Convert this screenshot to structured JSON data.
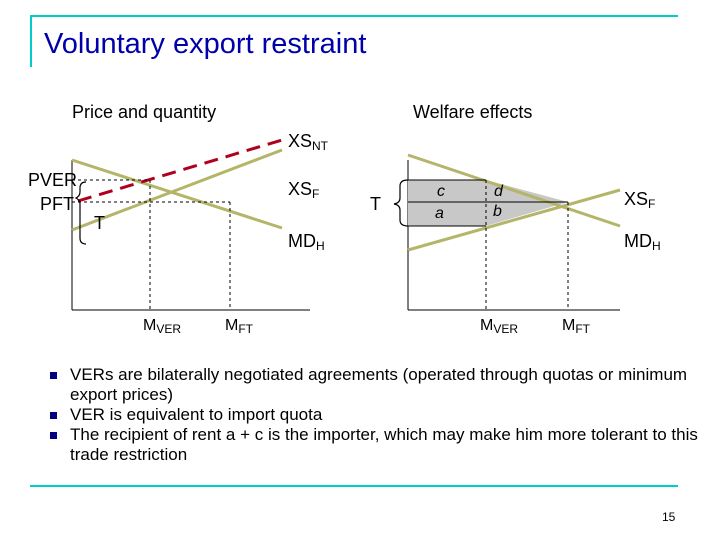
{
  "slide": {
    "title": "Voluntary export restraint",
    "page_number": "15"
  },
  "left_panel": {
    "heading": "Price and quantity",
    "curve_xs_nt": {
      "base": "XS",
      "sub": "NT"
    },
    "curve_xs_f": {
      "base": "XS",
      "sub": "F"
    },
    "curve_md_h": {
      "base": "MD",
      "sub": "H"
    },
    "price_ver": "PVER",
    "price_ft": "PFT",
    "tariff_equiv": "T",
    "qty_ver": {
      "base": "M",
      "sub": "VER"
    },
    "qty_ft": {
      "base": "M",
      "sub": "FT"
    }
  },
  "right_panel": {
    "heading": "Welfare effects",
    "tariff_equiv": "T",
    "area_c": "c",
    "area_a": "a",
    "area_d": "d",
    "area_b": "b",
    "curve_xs_f": {
      "base": "XS",
      "sub": "F"
    },
    "curve_md_h": {
      "base": "MD",
      "sub": "H"
    },
    "qty_ver": {
      "base": "M",
      "sub": "VER"
    },
    "qty_ft": {
      "base": "M",
      "sub": "FT"
    }
  },
  "bullets": [
    "VERs are bilaterally negotiated agreements (operated through quotas or minimum export prices)",
    "VER is equivalent to import quota",
    "The recipient of rent a + c is the importer, which may make him more tolerant to this trade restriction"
  ],
  "colors": {
    "accent": "#00cccc",
    "title": "#0000aa",
    "curve": "#b5b56a",
    "dashed": "#b00020",
    "shaded": "#c8c8c8",
    "bullet": "#000080"
  }
}
